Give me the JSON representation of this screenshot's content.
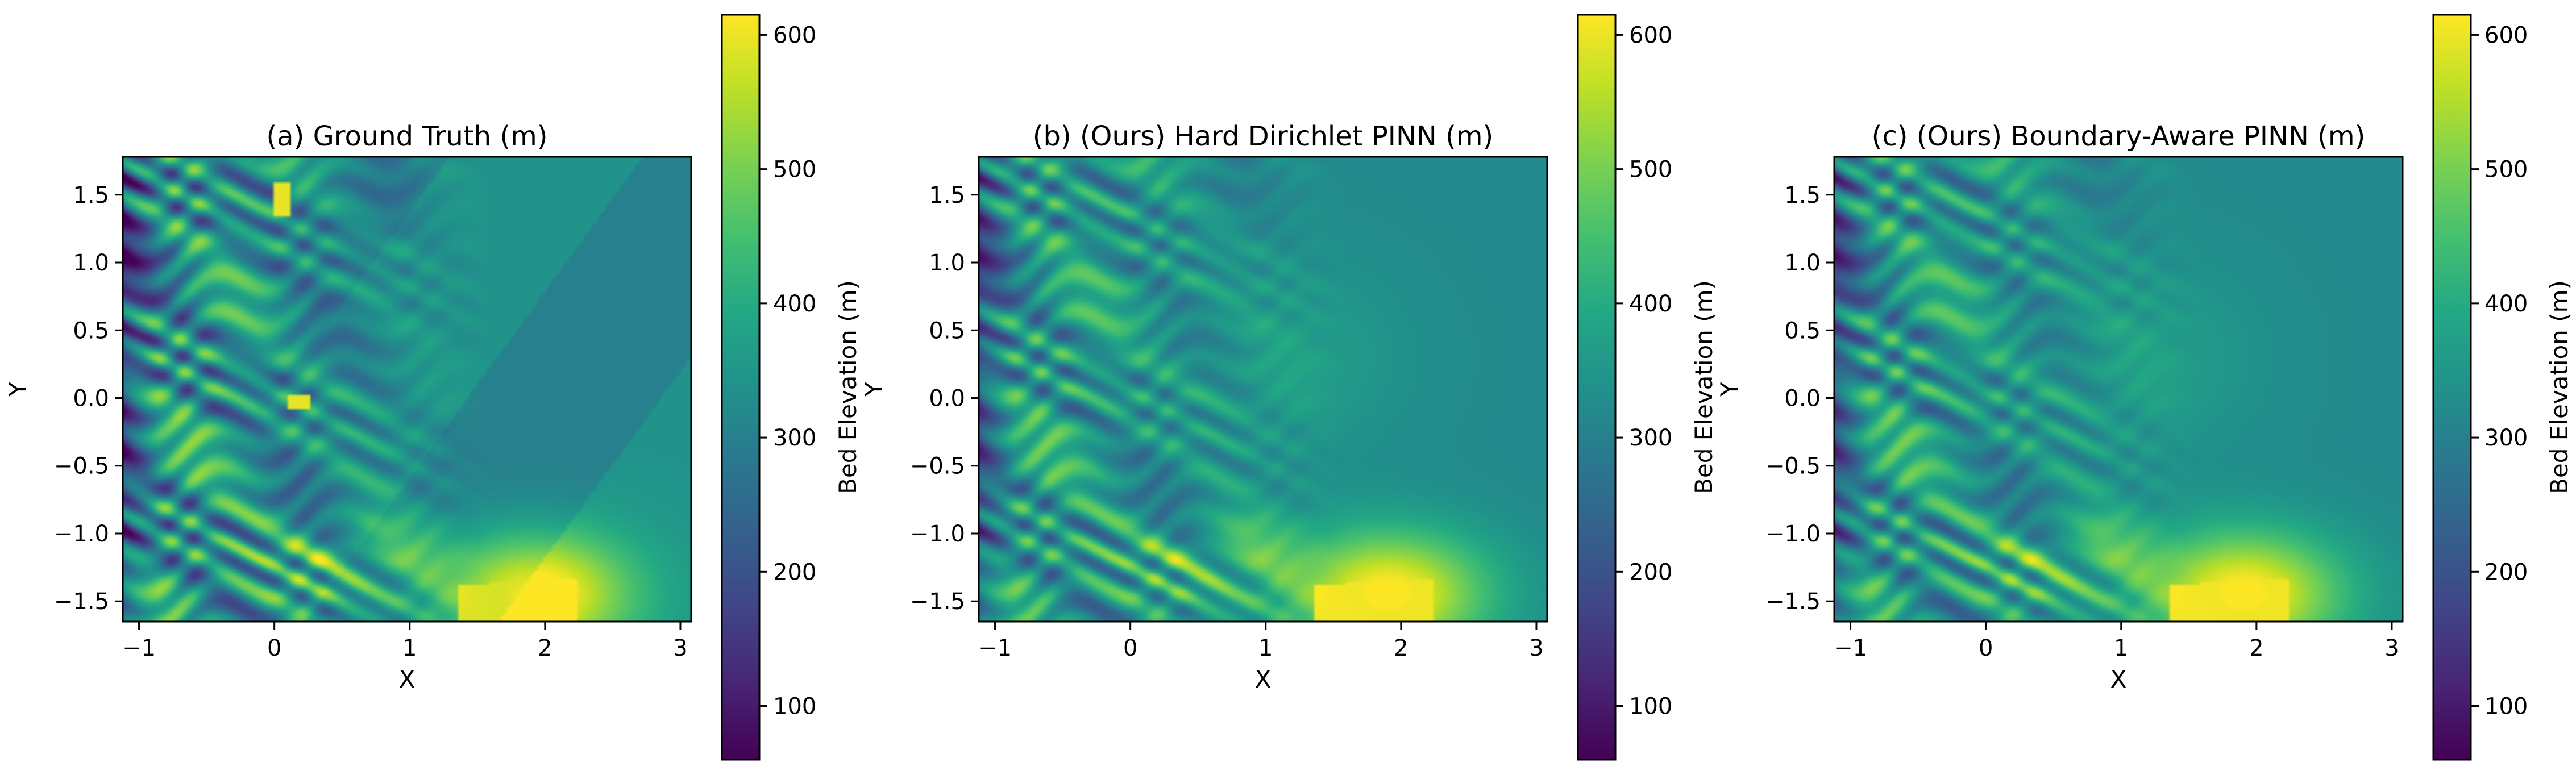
{
  "colorbar": {
    "label": "Bed Elevation (m)",
    "ticks": [
      100,
      200,
      300,
      400,
      500,
      600
    ],
    "range": [
      60,
      615
    ],
    "colormap": "viridis"
  },
  "chart_data": [
    {
      "type": "heatmap",
      "title": "(a) Ground Truth (m)",
      "xlabel": "X",
      "ylabel": "Y",
      "xlim": [
        -1.12,
        3.08
      ],
      "ylim": [
        -1.65,
        1.78
      ],
      "xticks": [
        -1,
        0,
        1,
        2,
        3
      ],
      "yticks": [
        -1.5,
        -1.0,
        -0.5,
        0.0,
        0.5,
        1.0,
        1.5
      ],
      "ytick_labels": [
        "−1.5",
        "−1.0",
        "−0.5",
        "0.0",
        "0.5",
        "1.0",
        "1.5"
      ],
      "xtick_labels": [
        "−1",
        "0",
        "1",
        "2",
        "3"
      ],
      "colorbar_label": "Bed Elevation (m)",
      "colorbar_ticks": [
        100,
        200,
        300,
        400,
        500,
        600
      ],
      "value_range": [
        60,
        615
      ]
    },
    {
      "type": "heatmap",
      "title": "(b) (Ours) Hard Dirichlet PINN (m)",
      "xlabel": "X",
      "ylabel": "Y",
      "xlim": [
        -1.12,
        3.08
      ],
      "ylim": [
        -1.65,
        1.78
      ],
      "xticks": [
        -1,
        0,
        1,
        2,
        3
      ],
      "yticks": [
        -1.5,
        -1.0,
        -0.5,
        0.0,
        0.5,
        1.0,
        1.5
      ],
      "ytick_labels": [
        "−1.5",
        "−1.0",
        "−0.5",
        "0.0",
        "0.5",
        "1.0",
        "1.5"
      ],
      "xtick_labels": [
        "−1",
        "0",
        "1",
        "2",
        "3"
      ],
      "colorbar_label": "Bed Elevation (m)",
      "colorbar_ticks": [
        100,
        200,
        300,
        400,
        500,
        600
      ],
      "value_range": [
        60,
        615
      ]
    },
    {
      "type": "heatmap",
      "title": "(c) (Ours) Boundary-Aware PINN (m)",
      "xlabel": "X",
      "ylabel": "Y",
      "xlim": [
        -1.12,
        3.08
      ],
      "ylim": [
        -1.65,
        1.78
      ],
      "xticks": [
        -1,
        0,
        1,
        2,
        3
      ],
      "yticks": [
        -1.5,
        -1.0,
        -0.5,
        0.0,
        0.5,
        1.0,
        1.5
      ],
      "ytick_labels": [
        "−1.5",
        "−1.0",
        "−0.5",
        "0.0",
        "0.5",
        "1.0",
        "1.5"
      ],
      "xtick_labels": [
        "−1",
        "0",
        "1",
        "2",
        "3"
      ],
      "colorbar_label": "Bed Elevation (m)",
      "colorbar_ticks": [
        100,
        200,
        300,
        400,
        500,
        600
      ],
      "value_range": [
        60,
        615
      ]
    }
  ]
}
